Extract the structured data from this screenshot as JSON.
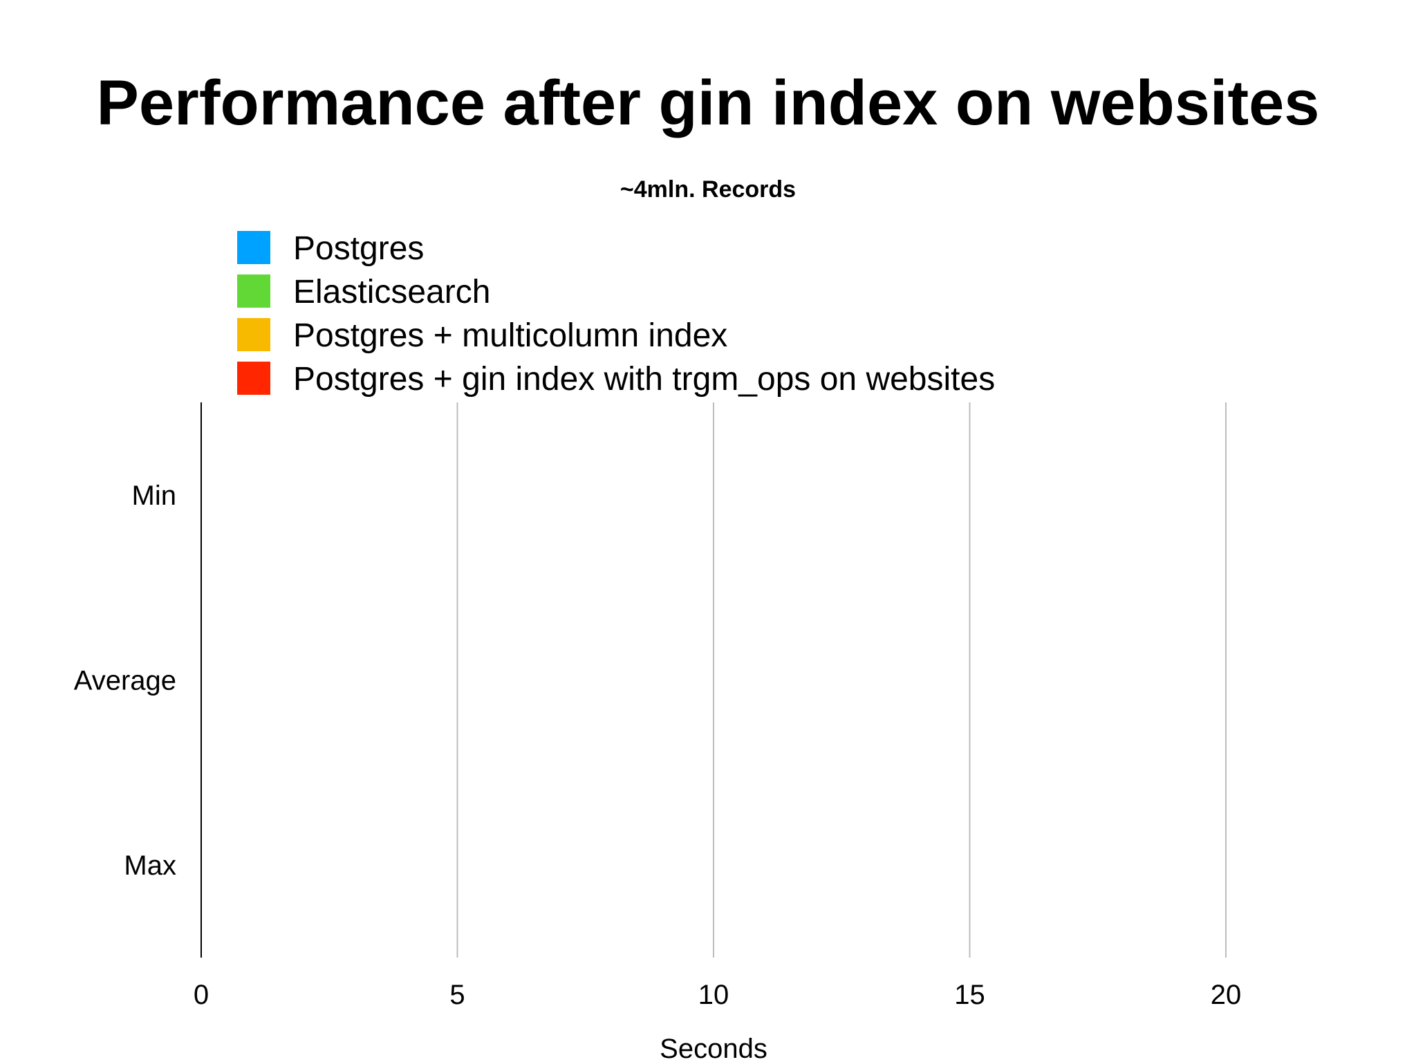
{
  "chart_data": {
    "type": "bar",
    "orientation": "horizontal",
    "title": "Performance after gin index on websites",
    "subtitle": "~4mln. Records",
    "categories": [
      "Min",
      "Average",
      "Max"
    ],
    "series": [
      {
        "name": "Postgres",
        "color": "#00a2ff",
        "values": [
          0,
          0,
          0
        ]
      },
      {
        "name": "Elasticsearch",
        "color": "#61d836",
        "values": [
          0,
          0,
          0
        ]
      },
      {
        "name": "Postgres + multicolumn index",
        "color": "#f8ba00",
        "values": [
          0,
          0,
          0
        ]
      },
      {
        "name": "Postgres + gin index with trgm_ops on websites",
        "color": "#ff2600",
        "values": [
          0,
          0,
          0
        ]
      }
    ],
    "xlabel": "Seconds",
    "ylabel": "",
    "xlim": [
      0,
      20
    ],
    "xticks": [
      "0",
      "5",
      "10",
      "15",
      "20"
    ],
    "grid": true,
    "legend_position": "top-left"
  }
}
